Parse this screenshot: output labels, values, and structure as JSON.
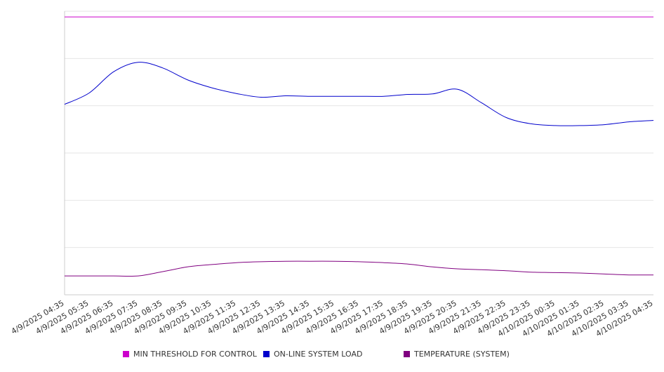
{
  "chart_data": {
    "type": "line",
    "title": "",
    "xlabel": "",
    "ylabel": "",
    "ylim": [
      0,
      6
    ],
    "grid": "horizontal",
    "legend": "bottom",
    "categories": [
      "4/9/2025 04:35",
      "4/9/2025 05:35",
      "4/9/2025 06:35",
      "4/9/2025 07:35",
      "4/9/2025 08:35",
      "4/9/2025 09:35",
      "4/9/2025 10:35",
      "4/9/2025 11:35",
      "4/9/2025 12:35",
      "4/9/2025 13:35",
      "4/9/2025 14:35",
      "4/9/2025 15:35",
      "4/9/2025 16:35",
      "4/9/2025 17:35",
      "4/9/2025 18:35",
      "4/9/2025 19:35",
      "4/9/2025 20:35",
      "4/9/2025 21:35",
      "4/9/2025 22:35",
      "4/9/2025 23:35",
      "4/10/2025 00:35",
      "4/10/2025 01:35",
      "4/10/2025 02:35",
      "4/10/2025 03:35",
      "4/10/2025 04:35"
    ],
    "series": [
      {
        "name": "MIN THRESHOLD FOR CONTROL",
        "color": "#cc00cc",
        "values": [
          5.88,
          5.88,
          5.88,
          5.88,
          5.88,
          5.88,
          5.88,
          5.88,
          5.88,
          5.88,
          5.88,
          5.88,
          5.88,
          5.88,
          5.88,
          5.88,
          5.88,
          5.88,
          5.88,
          5.88,
          5.88,
          5.88,
          5.88,
          5.88,
          5.88
        ]
      },
      {
        "name": "ON-LINE SYSTEM LOAD",
        "color": "#0000cc",
        "values": [
          4.03,
          4.27,
          4.72,
          4.92,
          4.8,
          4.55,
          4.38,
          4.26,
          4.18,
          4.21,
          4.2,
          4.2,
          4.2,
          4.2,
          4.24,
          4.25,
          4.35,
          4.06,
          3.75,
          3.62,
          3.58,
          3.58,
          3.6,
          3.66,
          3.69
        ]
      },
      {
        "name": "TEMPERATURE (SYSTEM)",
        "color": "#800080",
        "values": [
          0.4,
          0.4,
          0.4,
          0.4,
          0.49,
          0.59,
          0.64,
          0.68,
          0.7,
          0.71,
          0.71,
          0.71,
          0.7,
          0.68,
          0.65,
          0.59,
          0.55,
          0.53,
          0.51,
          0.48,
          0.47,
          0.46,
          0.44,
          0.42,
          0.42
        ]
      }
    ]
  }
}
